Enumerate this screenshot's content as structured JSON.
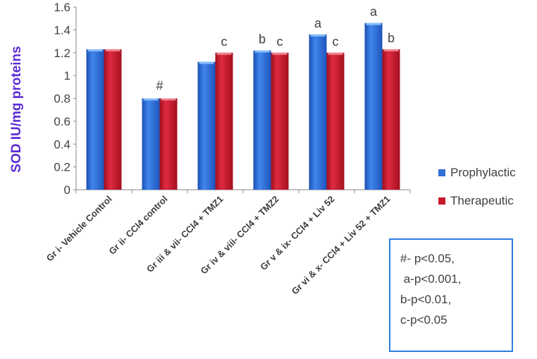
{
  "chart_data": {
    "type": "bar",
    "title": "",
    "xlabel": "",
    "ylabel": "SOD IU/mg proteins",
    "ylim": [
      0,
      1.6
    ],
    "yticks": [
      "0",
      "0.2",
      "0.4",
      "0.6",
      "0.8",
      "1",
      "1.2",
      "1.4",
      "1.6"
    ],
    "grid": false,
    "legend_position": "right",
    "categories": [
      "Gr i- Vehicle Control",
      "Gr ii- CCl4 control",
      "Gr iii & vii- CCl4 + TMZ1",
      "Gr iv & viii- CCl4 + TMZ2",
      "Gr v & ix- CCl4 + Liv 52",
      "Gr vi & x- CCl4 + Liv 52 + TMZ1"
    ],
    "series": [
      {
        "name": "Prophylactic",
        "color": "#2f6fd6",
        "values": [
          1.23,
          0.8,
          1.12,
          1.22,
          1.36,
          1.46
        ],
        "annotations": [
          "",
          "",
          "",
          "b",
          "a",
          "a"
        ]
      },
      {
        "name": "Therapeutic",
        "color": "#c8182c",
        "values": [
          1.23,
          0.8,
          1.2,
          1.2,
          1.2,
          1.23
        ],
        "annotations": [
          "",
          "",
          "c",
          "c",
          "c",
          "b"
        ]
      }
    ],
    "group_annotations": [
      "",
      "#",
      "",
      "",
      "",
      ""
    ],
    "significance_notes": [
      "#- p<0.05,",
      " a-p<0.001,",
      "b-p<0.01,",
      "c-p<0.05"
    ]
  }
}
